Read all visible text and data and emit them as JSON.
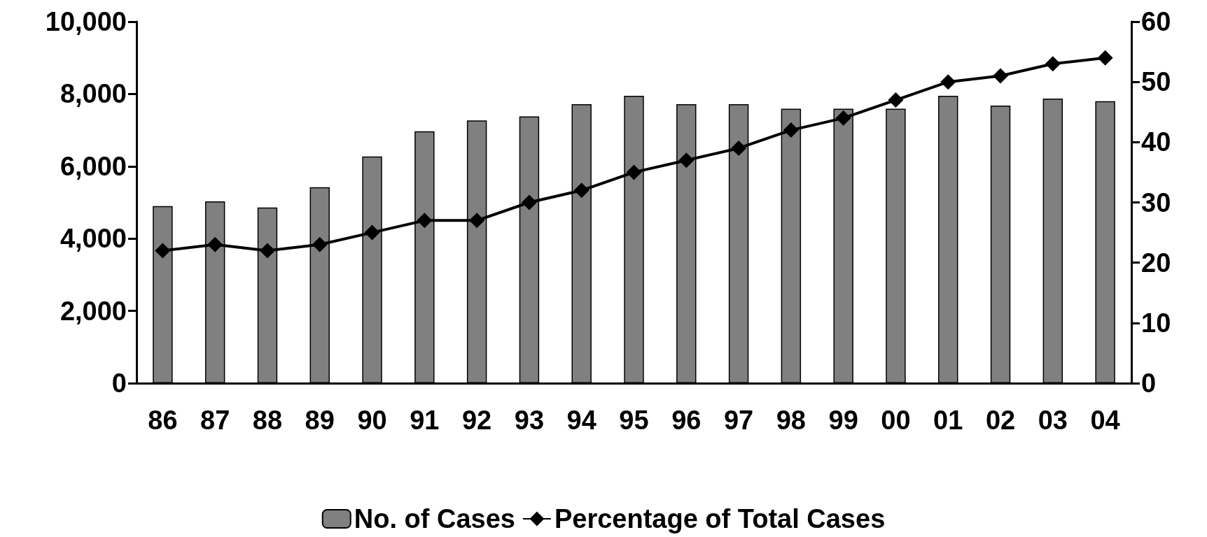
{
  "chart_data": {
    "type": "bar",
    "categories": [
      "86",
      "87",
      "88",
      "89",
      "90",
      "91",
      "92",
      "93",
      "94",
      "95",
      "96",
      "97",
      "98",
      "99",
      "00",
      "01",
      "02",
      "03",
      "04"
    ],
    "series": [
      {
        "name": "No. of Cases",
        "color": "#808080",
        "values": [
          4900,
          5030,
          4860,
          5420,
          6270,
          6970,
          7270,
          7380,
          7720,
          7950,
          7720,
          7720,
          7590,
          7590,
          7590,
          7950,
          7680,
          7870,
          7800
        ]
      },
      {
        "name": "Percentage of Total Cases",
        "type": "line",
        "axis": "y2",
        "color": "#000000",
        "values": [
          22,
          23,
          22,
          23,
          25,
          27,
          27,
          30,
          32,
          35,
          37,
          39,
          42,
          44,
          47,
          50,
          51,
          53,
          54
        ]
      }
    ],
    "ylim": [
      0,
      10000
    ],
    "yticks": [
      0,
      {
        "value": 2000,
        "label": "2,000"
      },
      {
        "value": 4000,
        "label": "4,000"
      },
      {
        "value": 6000,
        "label": "6,000"
      },
      {
        "value": 8000,
        "label": "8,000"
      },
      {
        "value": 10000,
        "label": "10,000"
      }
    ],
    "y2lim": [
      0,
      60
    ],
    "y2ticks": [
      0,
      10,
      20,
      30,
      40,
      50,
      60
    ],
    "marker": "diamond",
    "line_style": "solid",
    "grid": false,
    "legend": "bottom"
  }
}
